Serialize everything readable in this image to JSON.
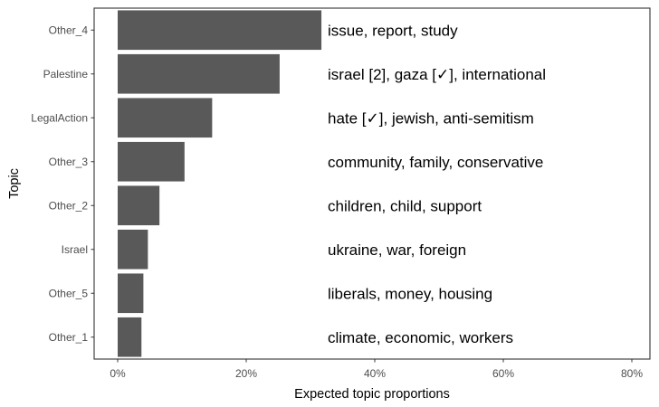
{
  "chart_data": {
    "type": "bar",
    "orientation": "horizontal",
    "xlabel": "Expected topic proportions",
    "ylabel": "Topic",
    "xlim": [
      -0.036,
      0.8
    ],
    "x_ticks": [
      0,
      0.2,
      0.4,
      0.6,
      0.8
    ],
    "x_tick_labels": [
      "0%",
      "20%",
      "40%",
      "60%",
      "80%"
    ],
    "grid": false,
    "legend": "none",
    "colors": {
      "bar": "#595959",
      "frame": "#333333",
      "tick_text": "#4d4d4d"
    },
    "categories": [
      "Other_4",
      "Palestine",
      "LegalAction",
      "Other_3",
      "Other_2",
      "Israel",
      "Other_5",
      "Other_1"
    ],
    "values": [
      0.317,
      0.252,
      0.147,
      0.104,
      0.065,
      0.047,
      0.04,
      0.037
    ],
    "annotations": [
      "issue, report, study",
      "israel [2], gaza [✓], international",
      "hate [✓], jewish, anti-semitism",
      "community, family, conservative",
      "children, child, support",
      "ukraine, war, foreign",
      "liberals, money, housing",
      "climate, economic, workers"
    ]
  }
}
